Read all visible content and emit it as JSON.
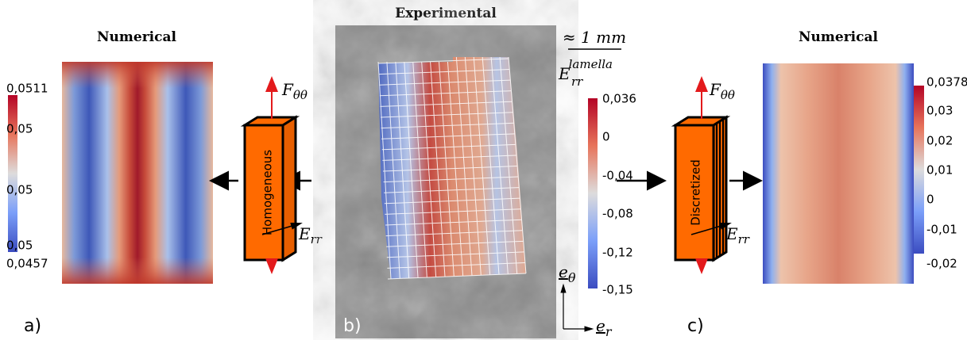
{
  "panel_a": {
    "title": "Numerical",
    "label": "a)",
    "colorbar_ticks": [
      "0,0511",
      "0,05",
      "0,05",
      "0,05",
      "0,0457"
    ],
    "specimen": "Homogeneous",
    "force": "F",
    "force_sub": "θθ",
    "strain": "E",
    "strain_sub": "rr"
  },
  "panel_b": {
    "title": "Experimental",
    "label": "b)",
    "scale": "≈ 1 mm",
    "field": "E",
    "field_sub": "rr",
    "field_sup": "lamella",
    "colorbar_ticks": [
      "0,036",
      "0",
      "-0,04",
      "-0,08",
      "-0,12",
      "-0,15"
    ],
    "axis_theta": "e",
    "axis_theta_sub": "θ",
    "axis_r": "e",
    "axis_r_sub": "r"
  },
  "panel_c": {
    "title": "Numerical",
    "label": "c)",
    "colorbar_ticks": [
      "0,0378",
      "0,03",
      "0,02",
      "0,01",
      "0",
      "-0,01",
      "-0,02"
    ],
    "specimen": "Discretized",
    "force": "F",
    "force_sub": "θθ",
    "strain": "E",
    "strain_sub": "rr"
  }
}
